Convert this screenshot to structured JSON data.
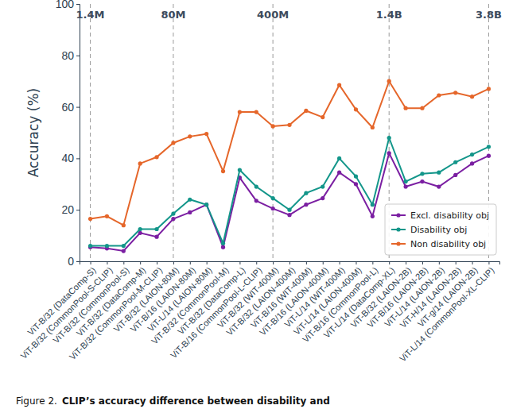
{
  "chart_data": {
    "type": "line",
    "y_label": "Accuracy (%)",
    "categories": [
      "ViT-B/32 (DataComp-S)",
      "ViT-B/32 (CommonPool-S-CLIP)",
      "ViT-B/32 (CommonPool-S)",
      "ViT-B/32 (DataComp-M)",
      "ViT-B/32 (CommonPool-M-CLIP)",
      "ViT-B/32 (LAION-80M)",
      "ViT-B/16 (LAION-80M)",
      "ViT-L/14 (LAION-80M)",
      "ViT-B/32 (CommonPool-M)",
      "ViT-B/32 (DataComp-L)",
      "ViT-B/16 (CommonPool-L-CLIP)",
      "ViT-B/32 (WIT-400M)",
      "ViT-B/32 (LAION-400M)",
      "ViT-B/16 (WIT-400M)",
      "ViT-B/16 (LAION-400M)",
      "ViT-L/14 (WIT-400M)",
      "ViT-L/14 (LAION-400M)",
      "ViT-B/16 (CommonPool-L)",
      "ViT-L/14 (DataComp-XL)",
      "ViT-B/32 (LAION-2B)",
      "ViT-B/16 (LAION-2B)",
      "ViT-L/14 (LAION-2B)",
      "ViT-H/14 (LAION-2B)",
      "ViT-g/14 (LAION-2B)",
      "ViT-L/14 (CommonPool-XL-CLIP)"
    ],
    "series": [
      {
        "name": "Excl. disability obj",
        "color": "#7b1fa2",
        "marker": "circle",
        "values": [
          5.5,
          5,
          4,
          11,
          9.5,
          16.5,
          19,
          22,
          5.5,
          32.5,
          23.5,
          20.5,
          18,
          22,
          24.5,
          34.5,
          30,
          17.5,
          42,
          29,
          31,
          29,
          33.5,
          38,
          41
        ]
      },
      {
        "name": "Disability obj",
        "color": "#13968a",
        "marker": "circle",
        "values": [
          6,
          6,
          6,
          12.5,
          12.5,
          18.5,
          24,
          22,
          7,
          35.5,
          29,
          24.5,
          20,
          26.5,
          29,
          40,
          33,
          22,
          48,
          31,
          34,
          34.5,
          38.5,
          41.5,
          44.5
        ]
      },
      {
        "name": "Non disability obj",
        "color": "#e5662a",
        "marker": "circle",
        "values": [
          16.5,
          17.5,
          14,
          38,
          40.5,
          46,
          48.5,
          49.5,
          35,
          58,
          58,
          52.5,
          53,
          58.5,
          56,
          68.5,
          59,
          52,
          70,
          59.5,
          59.5,
          64.5,
          65.5,
          64,
          67
        ]
      }
    ],
    "annotations": [
      {
        "label": "1.4M",
        "category": 0
      },
      {
        "label": "80M",
        "category": 5
      },
      {
        "label": "400M",
        "category": 11
      },
      {
        "label": "1.4B",
        "category": 18
      },
      {
        "label": "3.8B",
        "category": 24
      }
    ],
    "ylim": [
      0,
      100
    ],
    "yticks": [
      0,
      20,
      40,
      60,
      80,
      100
    ],
    "grid": false,
    "legend": "lower right"
  },
  "caption": {
    "number": "Figure 2.",
    "text": "CLIP’s accuracy difference between disability and"
  }
}
